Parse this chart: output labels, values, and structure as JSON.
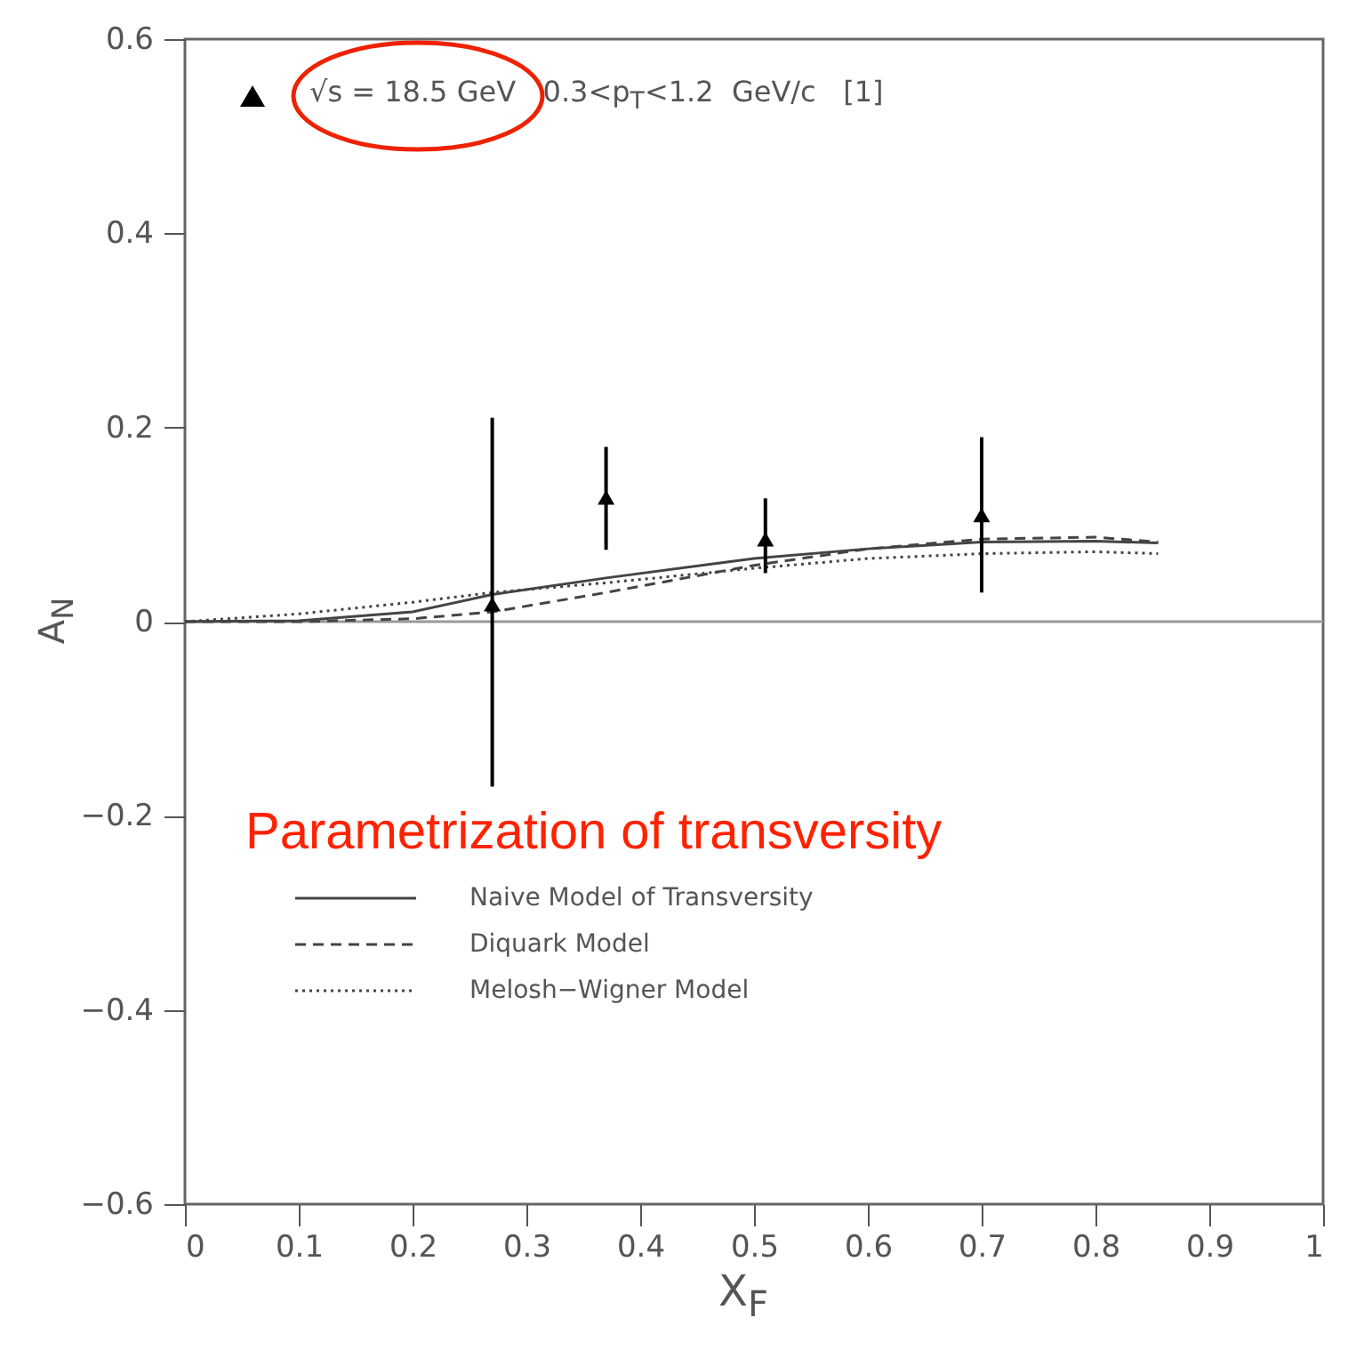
{
  "chart_data": {
    "type": "line",
    "xlabel": "X$_{F}$",
    "ylabel": "A$_{N}$",
    "legend_title": "Parametrization of transversity",
    "xlim": [
      0,
      1
    ],
    "xticks": [
      0,
      0.1,
      0.2,
      0.3,
      0.4,
      0.5,
      0.6,
      0.7,
      0.8,
      0.9,
      1
    ],
    "ylim": [
      -0.6,
      0.6
    ],
    "yticks": [
      {
        "value": -0.6,
        "label": "−0.6"
      },
      {
        "value": -0.4,
        "label": "−0.4"
      },
      {
        "value": -0.2,
        "label": "−0.2"
      },
      0,
      0.2,
      0.4,
      0.6
    ],
    "grid": false,
    "legend": "top left",
    "ref_lines": [
      {
        "axis": "y",
        "value": 0,
        "color": "#999999"
      }
    ],
    "series": [
      {
        "name": "Naive Model of Transversity",
        "line_style": "solid",
        "color": "#444444",
        "x": [
          0,
          0.1,
          0.2,
          0.27,
          0.37,
          0.5,
          0.6,
          0.7,
          0.8,
          0.855
        ],
        "values": [
          0,
          0.001,
          0.01,
          0.028,
          0.045,
          0.065,
          0.075,
          0.082,
          0.083,
          0.081
        ]
      },
      {
        "name": "Diquark Model",
        "line_style": "dashed",
        "color": "#444444",
        "x": [
          0,
          0.1,
          0.2,
          0.27,
          0.37,
          0.5,
          0.6,
          0.7,
          0.8,
          0.855
        ],
        "values": [
          0,
          0,
          0.003,
          0.01,
          0.03,
          0.058,
          0.075,
          0.085,
          0.087,
          0.082
        ]
      },
      {
        "name": "Melosh−Wigner Model",
        "line_style": "dotted",
        "color": "#444444",
        "x": [
          0,
          0.1,
          0.2,
          0.27,
          0.37,
          0.5,
          0.6,
          0.7,
          0.8,
          0.855
        ],
        "values": [
          0,
          0.008,
          0.02,
          0.03,
          0.04,
          0.055,
          0.065,
          0.07,
          0.072,
          0.07
        ]
      },
      {
        "name": "√s = 18.5 GeV   0.3<p$_{T}$<1.2  GeV/c   [1]",
        "type": "scatter",
        "marker": "triangle",
        "color": "#000000",
        "x": [
          0.27,
          0.37,
          0.51,
          0.7
        ],
        "values": [
          0.018,
          0.128,
          0.085,
          0.11
        ],
        "errors": [
          [
            -0.17,
            0.21
          ],
          [
            0.074,
            0.18
          ],
          [
            0.05,
            0.127
          ],
          [
            0.03,
            0.19
          ]
        ]
      }
    ]
  }
}
